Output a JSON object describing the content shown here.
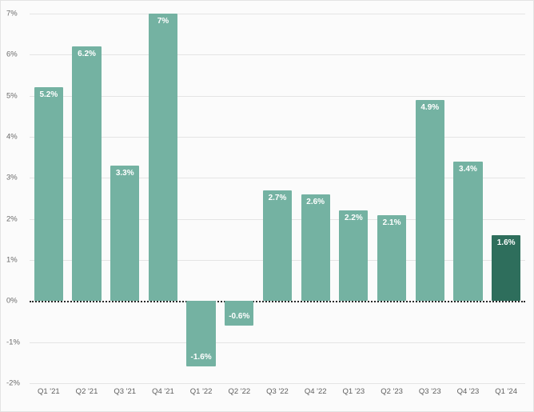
{
  "chart": {
    "bar_color": "#74b2a2",
    "highlight_color": "#2e6e5c",
    "grid_color": "#e4e4e4",
    "zero_line_style": "dotted",
    "y_ticks": [
      "7%",
      "6%",
      "5%",
      "4%",
      "3%",
      "2%",
      "1%",
      "0%",
      "-1%",
      "-2%"
    ]
  },
  "chart_data": {
    "type": "bar",
    "title": "",
    "xlabel": "",
    "ylabel": "",
    "categories": [
      "Q1 '21",
      "Q2 '21",
      "Q3 '21",
      "Q4 '21",
      "Q1 '22",
      "Q2 '22",
      "Q3 '22",
      "Q4 '22",
      "Q1 '23",
      "Q2 '23",
      "Q3 '23",
      "Q4 '23",
      "Q1 '24"
    ],
    "values": [
      5.2,
      6.2,
      3.3,
      7,
      -1.6,
      -0.6,
      2.7,
      2.6,
      2.2,
      2.1,
      4.9,
      3.4,
      1.6
    ],
    "data_labels": [
      "5.2%",
      "6.2%",
      "3.3%",
      "7%",
      "-1.6%",
      "-0.6%",
      "2.7%",
      "2.6%",
      "2.2%",
      "2.1%",
      "4.9%",
      "3.4%",
      "1.6%"
    ],
    "ylim": [
      -2,
      7
    ],
    "grid": true,
    "legend": "none",
    "highlight_index": 12
  }
}
